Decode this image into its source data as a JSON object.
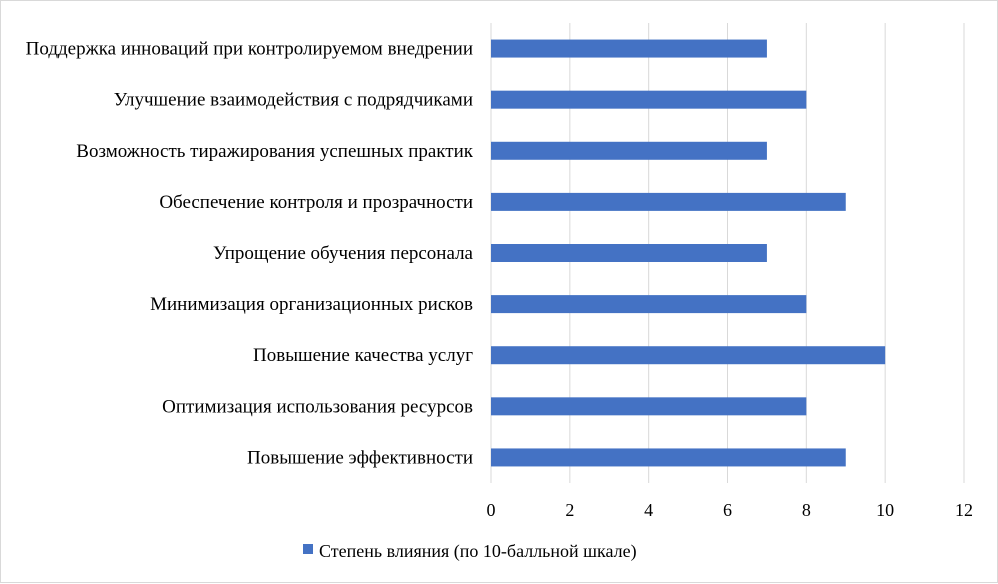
{
  "chart_data": {
    "type": "bar",
    "orientation": "horizontal",
    "categories": [
      "Поддержка инноваций при контролируемом внедрении",
      "Улучшение взаимодействия с подрядчиками",
      "Возможность тиражирования успешных практик",
      "Обеспечение контроля и прозрачности",
      "Упрощение обучения персонала",
      "Минимизация организационных рисков",
      "Повышение качества услуг",
      "Оптимизация использования ресурсов",
      "Повышение эффективности"
    ],
    "series": [
      {
        "name": "Степень влияния (по 10-балльной шкале)",
        "values": [
          7,
          8,
          7,
          9,
          7,
          8,
          10,
          8,
          9
        ],
        "color": "#4472c4"
      }
    ],
    "xlim": [
      0,
      12
    ],
    "xticks": [
      "0",
      "2",
      "4",
      "6",
      "8",
      "10",
      "12"
    ],
    "grid": "vertical",
    "legend": "bottom"
  }
}
